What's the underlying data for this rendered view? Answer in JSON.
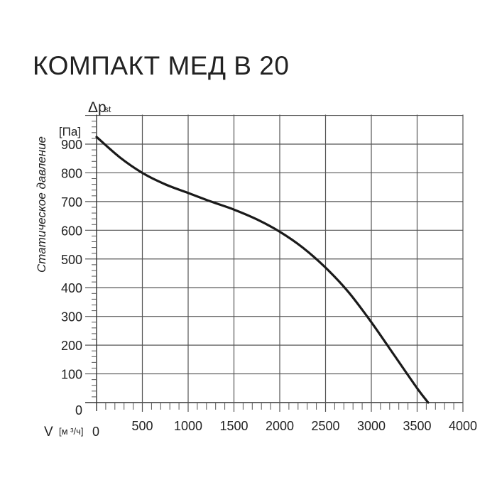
{
  "chart_data": {
    "type": "line",
    "title": "КОМПАКТ МЕД В 20",
    "ylabel_symbol": "Δp",
    "ylabel_subscript": "st",
    "yunit": "[Па]",
    "ylabel": "Статическое давление",
    "xlabel_symbol": "V",
    "xunit": "[м ³/ч]",
    "xlim": [
      0,
      4000
    ],
    "ylim": [
      0,
      1000
    ],
    "xticks": [
      "0",
      "500",
      "1000",
      "1500",
      "2000",
      "2500",
      "3000",
      "3500",
      "4000"
    ],
    "yticks": [
      "0",
      "100",
      "200",
      "300",
      "400",
      "500",
      "600",
      "700",
      "800",
      "900"
    ],
    "grid": true,
    "series": [
      {
        "x": [
          0,
          250,
          500,
          750,
          1000,
          1250,
          1500,
          1750,
          2000,
          2250,
          2500,
          2750,
          3000,
          3250,
          3500,
          3620
        ],
        "y": [
          925,
          855,
          800,
          760,
          730,
          700,
          672,
          638,
          595,
          540,
          470,
          385,
          280,
          165,
          50,
          0
        ],
        "color": "#1a1a1a"
      }
    ]
  }
}
